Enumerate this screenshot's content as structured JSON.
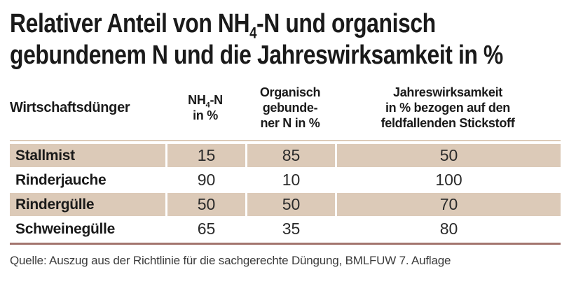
{
  "title": {
    "line1": {
      "pre": "Relativer Anteil von NH",
      "sub": "4",
      "post": "-N und organisch"
    },
    "line2": "gebundenem N und die Jahreswirksamkeit in %"
  },
  "table": {
    "headers": {
      "col1": "Wirtschaftsdünger",
      "col2": {
        "line1": {
          "pre": "NH",
          "sub": "4",
          "post": "-N"
        },
        "line2": "in %"
      },
      "col3_lines": [
        "Organisch",
        "gebunde-",
        "ner N in %"
      ],
      "col4_lines": [
        "Jahreswirksamkeit",
        "in % bezogen auf den",
        "feldfallenden Stickstoff"
      ]
    },
    "rows": [
      {
        "label": "Stallmist",
        "nh4": "15",
        "organic": "85",
        "effect": "50"
      },
      {
        "label": "Rinderjauche",
        "nh4": "90",
        "organic": "10",
        "effect": "100"
      },
      {
        "label": "Rindergülle",
        "nh4": "50",
        "organic": "50",
        "effect": "70"
      },
      {
        "label": "Schweinegülle",
        "nh4": "65",
        "organic": "35",
        "effect": "80"
      }
    ]
  },
  "source": "Quelle: Auszug aus der Richtlinie für die sachgerechte Düngung, BMLFUW 7. Auflage",
  "colors": {
    "row_highlight": "#dccab8",
    "rule": "#a3756e",
    "title_text": "#1a1a1a",
    "source_text": "#3b3b3b"
  }
}
